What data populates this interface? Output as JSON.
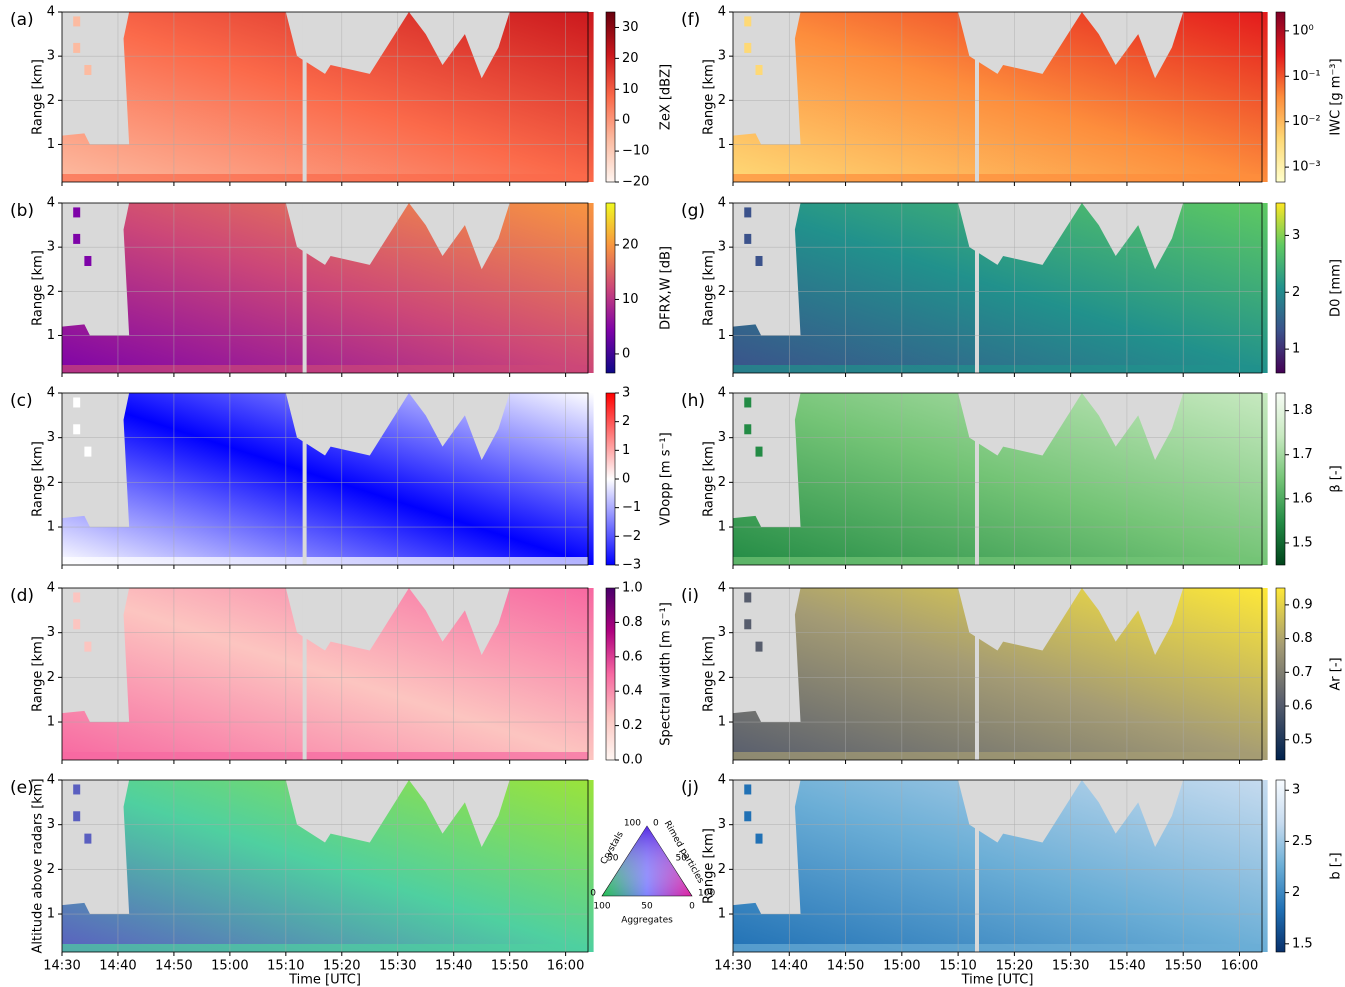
{
  "chart_data": [
    {
      "type": "heatmap",
      "panel": "(a)",
      "ylabel": "Range [km]",
      "xlim": [
        "14:30",
        "16:04"
      ],
      "ylim": [
        0.15,
        4
      ],
      "yticks": [
        1,
        2,
        3,
        4
      ],
      "grid": true,
      "colorbar": {
        "label": "ZeX [dBZ]",
        "lim": [
          -20,
          35
        ],
        "ticks": [
          {
            "value": -20,
            "label": "−20"
          },
          {
            "value": -10,
            "label": "−10"
          },
          0,
          10,
          20,
          30
        ],
        "colors": [
          "#fff5f0",
          "#fcbba1",
          "#fb6a4a",
          "#cb181d",
          "#67000d"
        ]
      }
    },
    {
      "type": "heatmap",
      "panel": "(b)",
      "ylabel": "Range [km]",
      "xlim": [
        "14:30",
        "16:04"
      ],
      "ylim": [
        0.15,
        4
      ],
      "yticks": [
        1,
        2,
        3,
        4
      ],
      "grid": true,
      "colorbar": {
        "label": "DFRX,W [dB]",
        "lim": [
          -3.5,
          27.7
        ],
        "ticks": [
          0,
          10,
          20
        ],
        "colors": [
          "#0d0887",
          "#7e03a8",
          "#cc4778",
          "#f89540",
          "#f0f921"
        ]
      }
    },
    {
      "type": "heatmap",
      "panel": "(c)",
      "ylabel": "Range [km]",
      "xlim": [
        "14:30",
        "16:04"
      ],
      "ylim": [
        0.15,
        4
      ],
      "yticks": [
        1,
        2,
        3,
        4
      ],
      "grid": true,
      "colorbar": {
        "label": "VDopp [m s⁻¹]",
        "lim": [
          -3,
          3
        ],
        "ticks": [
          {
            "value": -3,
            "label": "−3"
          },
          {
            "value": -2,
            "label": "−2"
          },
          {
            "value": -1,
            "label": "−1"
          },
          0,
          1,
          2,
          3
        ],
        "colors": [
          "#0000ff",
          "#ffffff",
          "#ff0000"
        ]
      }
    },
    {
      "type": "heatmap",
      "panel": "(d)",
      "ylabel": "Range [km]",
      "xlim": [
        "14:30",
        "16:04"
      ],
      "ylim": [
        0.15,
        4
      ],
      "yticks": [
        1,
        2,
        3,
        4
      ],
      "grid": true,
      "colorbar": {
        "label": "Spectral width [m s⁻¹]",
        "lim": [
          0,
          1
        ],
        "ticks": [
          {
            "value": 0,
            "label": "0.0"
          },
          0.2,
          0.4,
          0.6,
          0.8,
          {
            "value": 1,
            "label": "1.0"
          }
        ],
        "colors": [
          "#fff7f3",
          "#fcc5c0",
          "#f768a1",
          "#ae017e",
          "#49006a"
        ]
      }
    },
    {
      "type": "heatmap",
      "panel": "(e)",
      "ylabel": "Altitude above radars [km]",
      "xlabel": "Time [UTC]",
      "xlim": [
        "14:30",
        "16:04"
      ],
      "ylim": [
        0.15,
        4
      ],
      "yticks": [
        1,
        2,
        3,
        4
      ],
      "grid": true,
      "xticks": [
        "14:30",
        "14:40",
        "14:50",
        "15:00",
        "15:10",
        "15:20",
        "15:30",
        "15:40",
        "15:50",
        "16:00"
      ],
      "fill_colors": [
        "#3d3f7a",
        "#5a5fc0",
        "#4fd0a0",
        "#9be33a"
      ],
      "ternary": {
        "labels": [
          "Crystals",
          "Rimed particles",
          "Aggregates"
        ],
        "crystals_ticks": [
          0,
          50,
          100
        ],
        "rimed_ticks": [
          0,
          50,
          100
        ],
        "aggregates_ticks": [
          100,
          50,
          0
        ]
      }
    },
    {
      "type": "heatmap",
      "panel": "(f)",
      "ylabel": "Range [km]",
      "xlim": [
        "14:30",
        "16:04"
      ],
      "ylim": [
        0.15,
        4
      ],
      "yticks": [
        1,
        2,
        3,
        4
      ],
      "grid": true,
      "colorbar": {
        "label": "IWC [g m⁻³]",
        "log": true,
        "lim": [
          0.00047,
          2.6
        ],
        "ticks": [
          {
            "value": 0.001,
            "label": "10⁻³"
          },
          {
            "value": 0.01,
            "label": "10⁻²"
          },
          {
            "value": 0.1,
            "label": "10⁻¹"
          },
          {
            "value": 1,
            "label": "10⁰"
          }
        ],
        "colors": [
          "#ffffcc",
          "#fed976",
          "#fd8d3c",
          "#e31a1c",
          "#800026"
        ]
      }
    },
    {
      "type": "heatmap",
      "panel": "(g)",
      "ylabel": "Range [km]",
      "xlim": [
        "14:30",
        "16:04"
      ],
      "ylim": [
        0.15,
        4
      ],
      "yticks": [
        1,
        2,
        3,
        4
      ],
      "grid": true,
      "colorbar": {
        "label": "D0 [mm]",
        "lim": [
          0.58,
          3.57
        ],
        "ticks": [
          1,
          2,
          3
        ],
        "colors": [
          "#440154",
          "#3b528b",
          "#21918c",
          "#5ec962",
          "#fde725"
        ]
      }
    },
    {
      "type": "heatmap",
      "panel": "(h)",
      "ylabel": "Range [km]",
      "xlim": [
        "14:30",
        "16:04"
      ],
      "ylim": [
        0.15,
        4
      ],
      "yticks": [
        1,
        2,
        3,
        4
      ],
      "grid": true,
      "colorbar": {
        "label": "β [-]",
        "lim": [
          1.45,
          1.84
        ],
        "ticks": [
          1.5,
          1.6,
          1.7,
          1.8
        ],
        "colors": [
          "#00441b",
          "#238b45",
          "#74c476",
          "#c7e9c0",
          "#f7fcf5"
        ]
      }
    },
    {
      "type": "heatmap",
      "panel": "(i)",
      "ylabel": "Range [km]",
      "xlim": [
        "14:30",
        "16:04"
      ],
      "ylim": [
        0.15,
        4
      ],
      "yticks": [
        1,
        2,
        3,
        4
      ],
      "grid": true,
      "colorbar": {
        "label": "Ar [-]",
        "lim": [
          0.44,
          0.95
        ],
        "ticks": [
          0.5,
          0.6,
          0.7,
          0.8,
          0.9
        ],
        "colors": [
          "#00224e",
          "#575d6d",
          "#a59c74",
          "#fee838"
        ]
      }
    },
    {
      "type": "heatmap",
      "panel": "(j)",
      "ylabel": "Range [km]",
      "xlabel": "Time [UTC]",
      "xlim": [
        "14:30",
        "16:04"
      ],
      "ylim": [
        0.15,
        4
      ],
      "yticks": [
        1,
        2,
        3,
        4
      ],
      "grid": true,
      "xticks": [
        "14:30",
        "14:40",
        "14:50",
        "15:00",
        "15:10",
        "15:20",
        "15:30",
        "15:40",
        "15:50",
        "16:00"
      ],
      "colorbar": {
        "label": "b [-]",
        "lim": [
          1.42,
          3.1
        ],
        "ticks": [
          1.5,
          2.0,
          2.5,
          3.0
        ],
        "colors": [
          "#08306b",
          "#2171b5",
          "#6baed6",
          "#c6dbef",
          "#f7fbff"
        ]
      }
    }
  ]
}
